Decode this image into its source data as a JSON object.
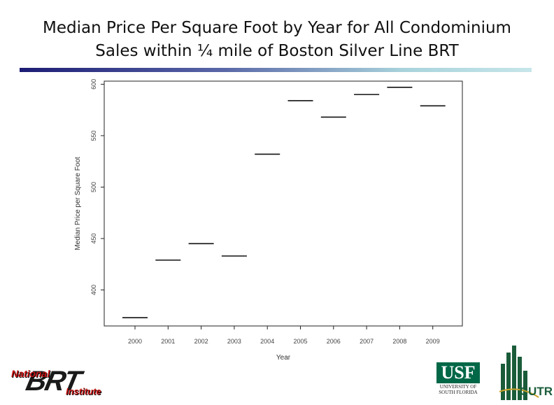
{
  "slide": {
    "title_line1": "Median Price Per Square Foot by Year for All Condominium",
    "title_line2": "Sales within ¼ mile of Boston Silver Line BRT"
  },
  "colors": {
    "title_rule_start": "#1c1c74",
    "title_rule_end": "#c6e6ea",
    "usf_green": "#006747",
    "nbrt_red": "#c81414",
    "cutr_green": "#1a5c3a"
  },
  "chart_data": {
    "type": "scatter",
    "marker": "horizontal-dash",
    "title": "",
    "xlabel": "Year",
    "ylabel": "Median Price per Square Foot",
    "categories": [
      "2000",
      "2001",
      "2002",
      "2003",
      "2004",
      "2005",
      "2006",
      "2007",
      "2008",
      "2009"
    ],
    "values": [
      373,
      429,
      445,
      433,
      532,
      584,
      568,
      590,
      597,
      579
    ],
    "yticks": [
      400,
      450,
      500,
      550,
      600
    ],
    "ylim": [
      365,
      603
    ],
    "grid": false,
    "legend": "none"
  },
  "logos": {
    "nbrt_national": "National",
    "nbrt_brt": "BRT",
    "nbrt_institute": "Institute",
    "usf_mark": "USF",
    "usf_sub_line1": "UNIVERSITY OF",
    "usf_sub_line2": "SOUTH FLORIDA",
    "cutr_mark": "CUTR"
  }
}
